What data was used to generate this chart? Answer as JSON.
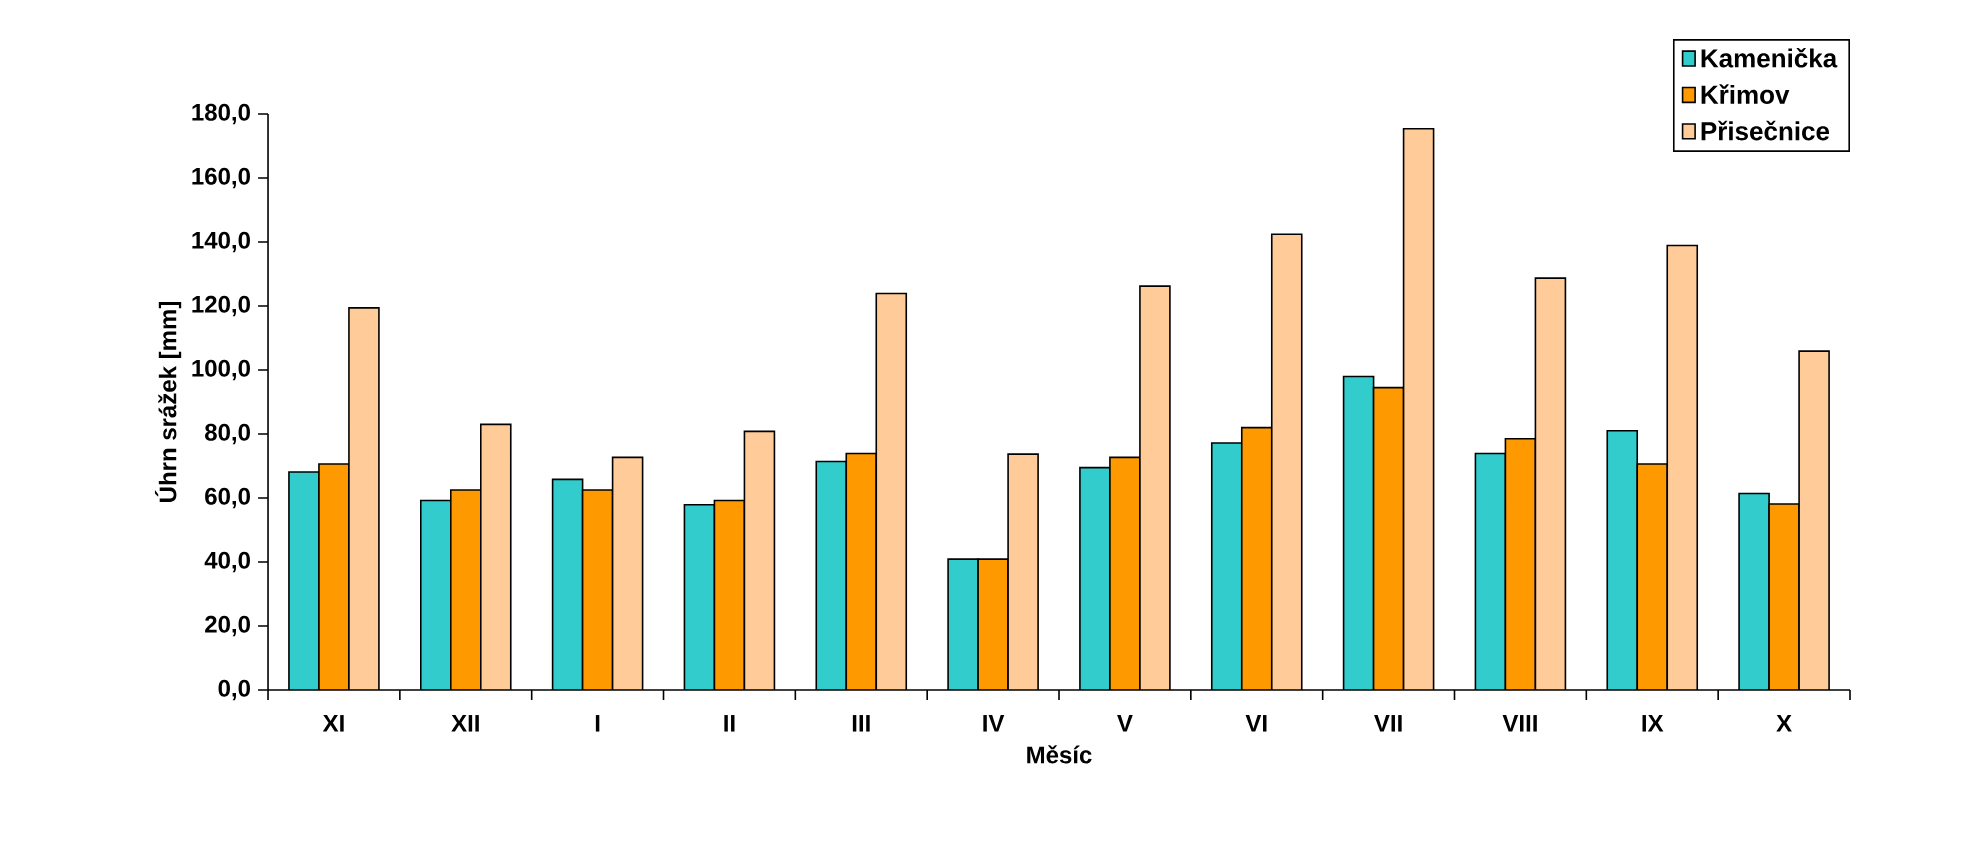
{
  "chart_data": {
    "type": "bar",
    "xlabel": "Měsíc",
    "ylabel": "Úhrn srážek [mm]",
    "categories": [
      "XI",
      "XII",
      "I",
      "II",
      "III",
      "IV",
      "V",
      "VI",
      "VII",
      "VIII",
      "IX",
      "X"
    ],
    "series": [
      {
        "name": "Kamenička",
        "color": "#33cccc",
        "values": [
          68.1,
          59.2,
          65.8,
          57.9,
          71.4,
          40.9,
          69.5,
          77.2,
          98.0,
          73.9,
          81.0,
          61.4
        ]
      },
      {
        "name": "Křimov",
        "color": "#ff9900",
        "values": [
          70.6,
          62.5,
          62.5,
          59.2,
          73.9,
          40.9,
          72.7,
          82.0,
          94.5,
          78.5,
          70.6,
          58.1
        ]
      },
      {
        "name": "Přisečnice",
        "color": "#ffcc99",
        "values": [
          119.4,
          83.0,
          72.7,
          80.8,
          123.9,
          73.7,
          126.2,
          142.4,
          175.4,
          128.7,
          138.9,
          105.9
        ]
      }
    ],
    "ylim": [
      0,
      180
    ],
    "yticks": [
      {
        "value": 0,
        "label": "0,0"
      },
      {
        "value": 20,
        "label": "20,0"
      },
      {
        "value": 40,
        "label": "40,0"
      },
      {
        "value": 60,
        "label": "60,0"
      },
      {
        "value": 80,
        "label": "80,0"
      },
      {
        "value": 100,
        "label": "100,0"
      },
      {
        "value": 120,
        "label": "120,0"
      },
      {
        "value": 140,
        "label": "140,0"
      },
      {
        "value": 160,
        "label": "160,0"
      },
      {
        "value": 180,
        "label": "180,0"
      }
    ],
    "legend": "top right"
  }
}
